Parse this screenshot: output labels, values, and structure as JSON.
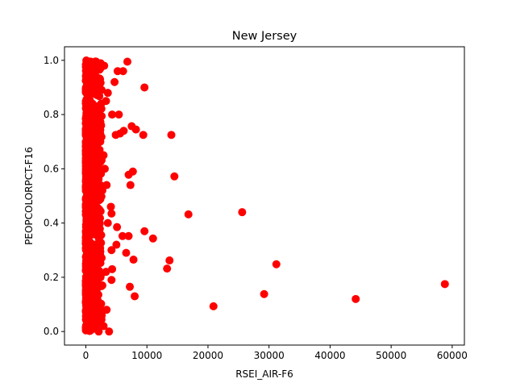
{
  "chart_data": {
    "type": "scatter",
    "title": "New Jersey",
    "xlabel": "RSEI_AIR-F6",
    "ylabel": "PEOPCOLORPCT-F16",
    "xlim": [
      -3500,
      62000
    ],
    "ylim": [
      -0.05,
      1.05
    ],
    "xticks": [
      0,
      10000,
      20000,
      30000,
      40000,
      50000,
      60000
    ],
    "xtick_labels": [
      "0",
      "10000",
      "20000",
      "30000",
      "40000",
      "50000",
      "60000"
    ],
    "yticks": [
      0.0,
      0.2,
      0.4,
      0.6,
      0.8,
      1.0
    ],
    "ytick_labels": [
      "0.0",
      "0.2",
      "0.4",
      "0.6",
      "0.8",
      "1.0"
    ],
    "grid": false,
    "marker_color": "#ff0000",
    "series": [
      {
        "points": [
          [
            6800,
            0.995
          ],
          [
            9600,
            0.9
          ],
          [
            6100,
            0.96
          ],
          [
            5200,
            0.96
          ],
          [
            7500,
            0.757
          ],
          [
            8200,
            0.745
          ],
          [
            14000,
            0.725
          ],
          [
            9400,
            0.725
          ],
          [
            6200,
            0.74
          ],
          [
            5600,
            0.73
          ],
          [
            4900,
            0.725
          ],
          [
            5400,
            0.8
          ],
          [
            4300,
            0.8
          ],
          [
            4700,
            0.92
          ],
          [
            3600,
            0.88
          ],
          [
            2900,
            0.65
          ],
          [
            3100,
            0.6
          ],
          [
            7700,
            0.59
          ],
          [
            7000,
            0.578
          ],
          [
            14500,
            0.572
          ],
          [
            7300,
            0.54
          ],
          [
            2700,
            0.52
          ],
          [
            3400,
            0.54
          ],
          [
            16800,
            0.432
          ],
          [
            25600,
            0.44
          ],
          [
            4100,
            0.46
          ],
          [
            4200,
            0.435
          ],
          [
            2200,
            0.45
          ],
          [
            3600,
            0.4
          ],
          [
            5100,
            0.385
          ],
          [
            7000,
            0.352
          ],
          [
            6000,
            0.352
          ],
          [
            9600,
            0.37
          ],
          [
            11000,
            0.343
          ],
          [
            5000,
            0.32
          ],
          [
            4200,
            0.3
          ],
          [
            6600,
            0.29
          ],
          [
            7800,
            0.265
          ],
          [
            13700,
            0.262
          ],
          [
            13300,
            0.232
          ],
          [
            31200,
            0.248
          ],
          [
            4300,
            0.23
          ],
          [
            3300,
            0.22
          ],
          [
            2400,
            0.2
          ],
          [
            4200,
            0.19
          ],
          [
            2700,
            0.17
          ],
          [
            7200,
            0.165
          ],
          [
            8000,
            0.13
          ],
          [
            58800,
            0.175
          ],
          [
            29200,
            0.138
          ],
          [
            44200,
            0.12
          ],
          [
            20900,
            0.093
          ],
          [
            3400,
            0.08
          ],
          [
            2600,
            0.06
          ],
          [
            2900,
            0.02
          ],
          [
            3800,
            0.0
          ],
          [
            2100,
            0.0
          ],
          [
            1200,
            0.01
          ],
          [
            3000,
            0.98
          ],
          [
            3300,
            0.85
          ],
          [
            2000,
            0.1
          ],
          [
            1600,
            0.3
          ],
          [
            1700,
            0.7
          ],
          [
            2500,
            0.76
          ]
        ]
      }
    ]
  }
}
